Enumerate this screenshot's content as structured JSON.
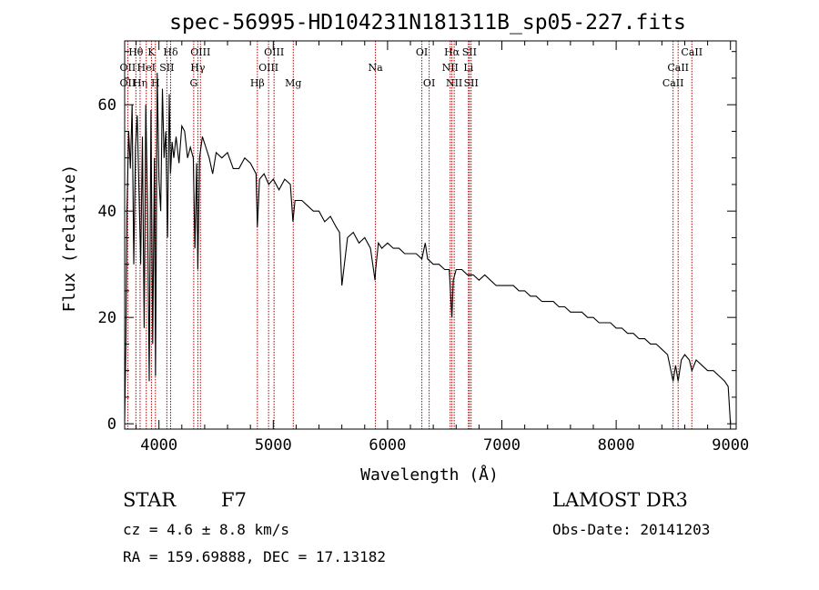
{
  "chart_data": {
    "type": "line",
    "title": "spec-56995-HD104231N181311B_sp05-227.fits",
    "xlabel": "Wavelength (Å)",
    "ylabel": "Flux (relative)",
    "xlim": [
      3700,
      9050
    ],
    "ylim": [
      -1,
      72
    ],
    "xticks": [
      4000,
      5000,
      6000,
      7000,
      8000,
      9000
    ],
    "yticks": [
      0,
      20,
      40,
      60
    ],
    "series": [
      {
        "name": "flux",
        "x": [
          3700,
          3710,
          3720,
          3735,
          3750,
          3765,
          3780,
          3795,
          3810,
          3825,
          3840,
          3855,
          3870,
          3885,
          3900,
          3915,
          3930,
          3945,
          3960,
          3970,
          3985,
          4000,
          4015,
          4030,
          4045,
          4060,
          4075,
          4090,
          4101,
          4115,
          4130,
          4150,
          4175,
          4200,
          4225,
          4250,
          4275,
          4300,
          4315,
          4330,
          4340,
          4355,
          4380,
          4410,
          4440,
          4470,
          4500,
          4550,
          4600,
          4650,
          4700,
          4750,
          4800,
          4850,
          4861,
          4880,
          4920,
          4960,
          5000,
          5050,
          5100,
          5150,
          5172,
          5190,
          5250,
          5300,
          5350,
          5400,
          5450,
          5500,
          5550,
          5580,
          5600,
          5650,
          5700,
          5750,
          5800,
          5850,
          5890,
          5896,
          5920,
          5950,
          6000,
          6050,
          6100,
          6150,
          6200,
          6250,
          6300,
          6330,
          6350,
          6400,
          6450,
          6500,
          6540,
          6563,
          6575,
          6600,
          6650,
          6700,
          6750,
          6800,
          6850,
          6900,
          6950,
          7000,
          7050,
          7100,
          7150,
          7200,
          7250,
          7300,
          7350,
          7400,
          7450,
          7500,
          7550,
          7600,
          7650,
          7700,
          7750,
          7800,
          7850,
          7900,
          7950,
          8000,
          8050,
          8100,
          8150,
          8200,
          8250,
          8300,
          8350,
          8400,
          8450,
          8498,
          8520,
          8542,
          8570,
          8600,
          8640,
          8662,
          8700,
          8750,
          8800,
          8850,
          8900,
          8950,
          8980,
          9000
        ],
        "values": [
          0.5,
          15,
          40,
          55,
          48,
          60,
          30,
          52,
          58,
          44,
          30,
          54,
          18,
          60,
          41,
          8,
          59,
          15,
          50,
          9,
          66,
          46,
          40,
          63,
          50,
          55,
          35,
          62,
          47,
          53,
          50,
          54,
          49,
          56,
          55,
          50,
          52,
          50,
          33,
          49,
          29,
          50,
          54,
          52,
          50,
          47,
          51,
          50,
          51,
          48,
          48,
          50,
          49,
          47,
          37,
          46,
          47,
          45,
          46,
          44,
          46,
          45,
          38,
          42,
          42,
          41,
          40,
          40,
          38,
          39,
          37,
          36,
          26,
          35,
          36,
          34,
          35,
          33,
          27,
          29,
          34,
          33,
          34,
          33,
          33,
          32,
          32,
          32,
          31,
          34,
          31,
          30,
          30,
          29,
          29,
          20,
          27,
          29,
          29,
          28,
          28,
          27,
          28,
          27,
          26,
          26,
          26,
          26,
          25,
          25,
          24,
          24,
          23,
          23,
          23,
          22,
          22,
          21,
          21,
          21,
          20,
          20,
          19,
          19,
          19,
          18,
          18,
          17,
          17,
          16,
          16,
          15,
          15,
          14,
          13,
          8,
          11,
          8,
          12,
          13,
          12,
          10,
          12,
          11,
          10,
          10,
          9,
          8,
          7,
          0
        ]
      }
    ],
    "line_markers": [
      {
        "label": "Hθ",
        "x": 3798,
        "row": 1
      },
      {
        "label": "OII",
        "x": 3727,
        "row": 2
      },
      {
        "label": "OII",
        "x": 3727,
        "row": 3
      },
      {
        "label": "Hη",
        "x": 3835,
        "row": 3
      },
      {
        "label": "HeI",
        "x": 3889,
        "row": 2
      },
      {
        "label": "K",
        "x": 3934,
        "row": 1
      },
      {
        "label": "H",
        "x": 3969,
        "row": 3
      },
      {
        "label": "SII",
        "x": 4069,
        "row": 2
      },
      {
        "label": "Hδ",
        "x": 4102,
        "row": 1
      },
      {
        "label": "OIII",
        "x": 4363,
        "row": 1
      },
      {
        "label": "Hγ",
        "x": 4340,
        "row": 2
      },
      {
        "label": "G",
        "x": 4304,
        "row": 3
      },
      {
        "label": "Hβ",
        "x": 4861,
        "row": 3
      },
      {
        "label": "OIII",
        "x": 5007,
        "row": 1
      },
      {
        "label": "OIII",
        "x": 4959,
        "row": 2
      },
      {
        "label": "Mg",
        "x": 5175,
        "row": 3
      },
      {
        "label": "Na",
        "x": 5894,
        "row": 2
      },
      {
        "label": "OI",
        "x": 6300,
        "row": 1
      },
      {
        "label": "OI",
        "x": 6364,
        "row": 3
      },
      {
        "label": "Hα",
        "x": 6563,
        "row": 1
      },
      {
        "label": "NII",
        "x": 6548,
        "row": 2
      },
      {
        "label": "NII",
        "x": 6583,
        "row": 3
      },
      {
        "label": "SII",
        "x": 6716,
        "row": 1
      },
      {
        "label": "Li",
        "x": 6708,
        "row": 2
      },
      {
        "label": "SII",
        "x": 6731,
        "row": 3
      },
      {
        "label": "CaII",
        "x": 8662,
        "row": 1
      },
      {
        "label": "CaII",
        "x": 8542,
        "row": 2
      },
      {
        "label": "CaII",
        "x": 8498,
        "row": 3
      }
    ]
  },
  "info": {
    "object_class": "STAR",
    "subclass": "F7",
    "survey": "LAMOST DR3",
    "redshift": "cz = 4.6 ± 8.8 km/s",
    "obs_date": "Obs-Date: 20141203",
    "coords": "RA = 159.69888, DEC =  17.13182"
  }
}
